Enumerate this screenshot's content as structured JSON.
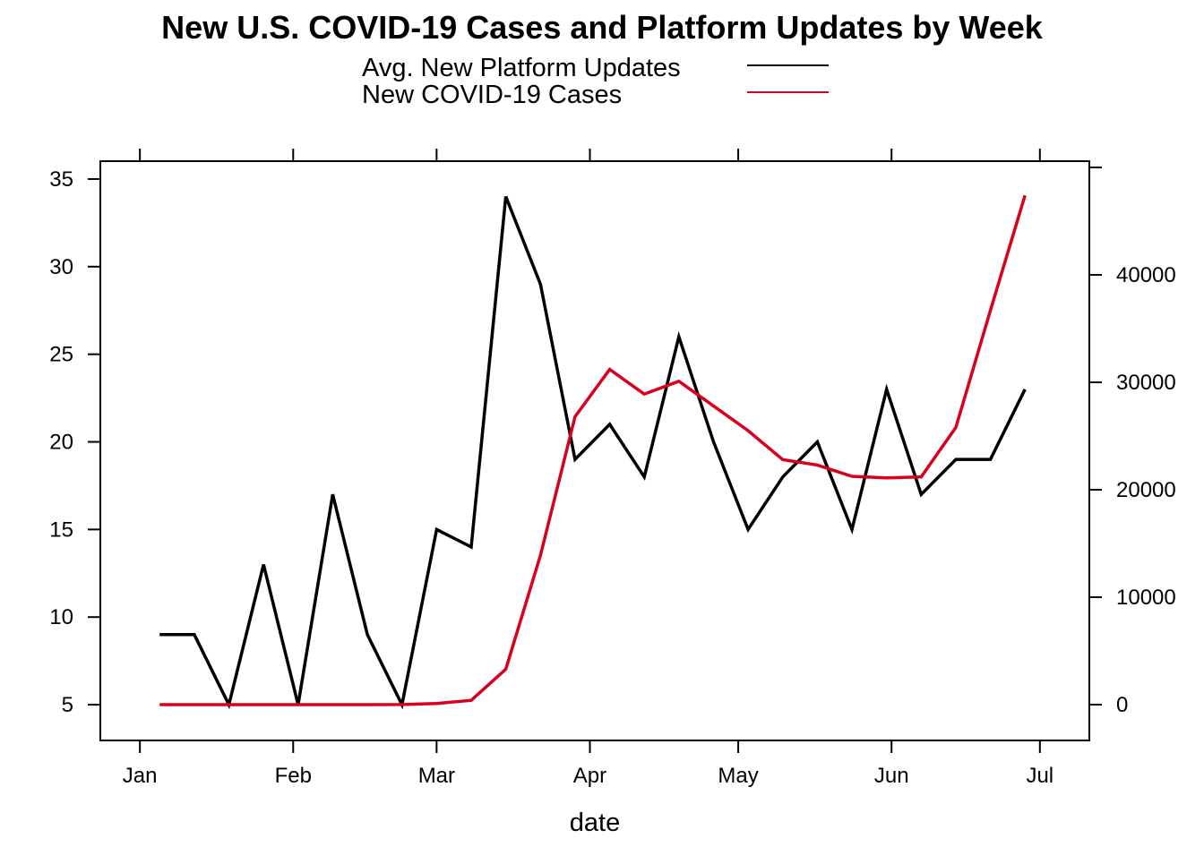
{
  "chart_data": {
    "type": "line",
    "title": "New U.S. COVID-19 Cases and Platform Updates by Week",
    "xlabel": "date",
    "ylabel_left": "",
    "ylabel_right": "",
    "legend_placement": "top",
    "grid": false,
    "x_ticks": [
      {
        "date": "2020-01-01",
        "label": "Jan"
      },
      {
        "date": "2020-02-01",
        "label": "Feb"
      },
      {
        "date": "2020-03-01",
        "label": "Mar"
      },
      {
        "date": "2020-04-01",
        "label": "Apr"
      },
      {
        "date": "2020-05-01",
        "label": "May"
      },
      {
        "date": "2020-06-01",
        "label": "Jun"
      },
      {
        "date": "2020-07-01",
        "label": "Jul"
      }
    ],
    "xlim": [
      "2019-12-24",
      "2020-07-11"
    ],
    "y_left": {
      "ylim": [
        2.96,
        36.02
      ],
      "ticks": [
        5,
        10,
        15,
        20,
        25,
        30,
        35
      ]
    },
    "y_right": {
      "ylim": [
        -3333,
        50583
      ],
      "ticks": [
        0,
        10000,
        20000,
        30000,
        40000,
        50000
      ],
      "labels": [
        "0",
        "10000",
        "20000",
        "30000",
        "40000",
        ""
      ]
    },
    "x": [
      "2020-01-05",
      "2020-01-12",
      "2020-01-19",
      "2020-01-26",
      "2020-02-02",
      "2020-02-09",
      "2020-02-16",
      "2020-02-23",
      "2020-03-01",
      "2020-03-08",
      "2020-03-15",
      "2020-03-22",
      "2020-03-29",
      "2020-04-05",
      "2020-04-12",
      "2020-04-19",
      "2020-04-26",
      "2020-05-03",
      "2020-05-10",
      "2020-05-17",
      "2020-05-24",
      "2020-05-31",
      "2020-06-07",
      "2020-06-14",
      "2020-06-21",
      "2020-06-28"
    ],
    "series": [
      {
        "name": "Avg. New Platform Updates",
        "axis": "left",
        "color": "#000000",
        "values": [
          9,
          9,
          5,
          13,
          5,
          17,
          9,
          5,
          15,
          14,
          34,
          29,
          19,
          21,
          18,
          26,
          20,
          15,
          18,
          20,
          15,
          23,
          17,
          19,
          19,
          23
        ]
      },
      {
        "name": "New COVID-19 Cases",
        "axis": "right",
        "color": "#d7001f",
        "values": [
          0,
          0,
          0,
          0,
          0,
          0,
          0,
          10,
          100,
          400,
          3300,
          13900,
          26800,
          31200,
          28900,
          30100,
          27800,
          25500,
          22800,
          22300,
          21250,
          21100,
          21200,
          25800,
          36700,
          47400
        ]
      }
    ]
  }
}
